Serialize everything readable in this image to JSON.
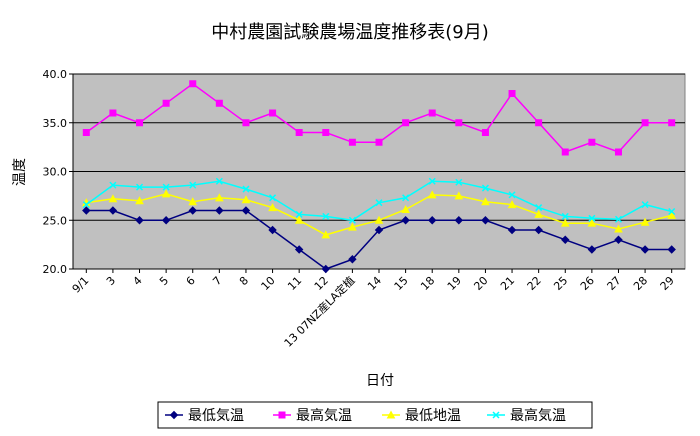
{
  "chart_data": {
    "type": "line",
    "title": "中村農園試験農場温度推移表(9月)",
    "xlabel": "日付",
    "ylabel": "温度",
    "ylim": [
      20,
      40
    ],
    "yticks": [
      "20.0",
      "25.0",
      "30.0",
      "35.0",
      "40.0"
    ],
    "grid": "horizontal",
    "legend_position": "bottom",
    "categories": [
      "9/1",
      "3",
      "4",
      "5",
      "6",
      "7",
      "8",
      "10",
      "11",
      "12",
      "13 07NZ産LA定植",
      "14",
      "15",
      "18",
      "19",
      "20",
      "21",
      "22",
      "25",
      "26",
      "27",
      "28",
      "29"
    ],
    "series": [
      {
        "name": "最低気温",
        "color": "#000080",
        "marker": "diamond",
        "values": [
          26,
          26,
          25,
          25,
          26,
          26,
          26,
          24,
          22,
          20,
          21,
          24,
          25,
          25,
          25,
          25,
          24,
          24,
          23,
          22,
          23,
          22,
          22
        ]
      },
      {
        "name": "最高気温",
        "color": "#FF00FF",
        "marker": "square",
        "values": [
          34,
          36,
          35,
          37,
          39,
          37,
          35,
          36,
          34,
          34,
          33,
          33,
          35,
          36,
          35,
          34,
          38,
          35,
          32,
          33,
          32,
          35,
          35
        ]
      },
      {
        "name": "最低地温",
        "color": "#FFFF00",
        "marker": "triangle",
        "values": [
          26.8,
          27.2,
          27.0,
          27.7,
          26.9,
          27.3,
          27.1,
          26.3,
          25.0,
          23.5,
          24.3,
          25.0,
          26.1,
          27.6,
          27.5,
          26.9,
          26.6,
          25.6,
          24.7,
          24.7,
          24.1,
          24.8,
          25.5
        ]
      },
      {
        "name": "最高気温",
        "color": "#00FFFF",
        "marker": "x",
        "values": [
          26.6,
          28.6,
          28.4,
          28.4,
          28.6,
          29.0,
          28.2,
          27.3,
          25.6,
          25.4,
          25.0,
          26.8,
          27.3,
          29.0,
          28.9,
          28.3,
          27.6,
          26.3,
          25.4,
          25.2,
          25.1,
          26.6,
          25.9
        ]
      }
    ]
  }
}
